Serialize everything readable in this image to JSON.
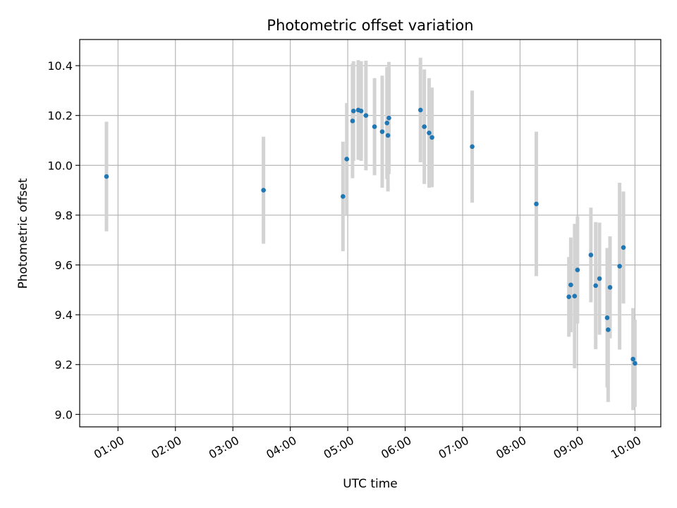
{
  "chart_data": {
    "type": "scatter",
    "title": "Photometric offset variation",
    "xlabel": "UTC time",
    "ylabel": "Photometric offset",
    "x_ticks": [
      "01:00",
      "02:00",
      "03:00",
      "04:00",
      "05:00",
      "06:00",
      "07:00",
      "08:00",
      "09:00",
      "10:00"
    ],
    "y_ticks": [
      "9.0",
      "9.2",
      "9.4",
      "9.6",
      "9.8",
      "10.0",
      "10.2",
      "10.4"
    ],
    "xlim": [
      "00:20",
      "10:27"
    ],
    "ylim": [
      8.95,
      10.505
    ],
    "grid": true,
    "colors": {
      "point": "#1f77b4",
      "errorbar": "#d3d3d3",
      "grid": "#b0b0b0"
    },
    "series": [
      {
        "points": [
          {
            "x": "00:48",
            "y": 9.955,
            "err": 0.22
          },
          {
            "x": "03:32",
            "y": 9.9,
            "err": 0.215
          },
          {
            "x": "04:55",
            "y": 9.875,
            "err": 0.22
          },
          {
            "x": "04:59",
            "y": 10.025,
            "err": 0.225
          },
          {
            "x": "05:05",
            "y": 10.178,
            "err": 0.23
          },
          {
            "x": "05:06",
            "y": 10.218,
            "err": 0.2
          },
          {
            "x": "05:11",
            "y": 10.222,
            "err": 0.2
          },
          {
            "x": "05:14",
            "y": 10.218,
            "err": 0.2
          },
          {
            "x": "05:19",
            "y": 10.2,
            "err": 0.22
          },
          {
            "x": "05:28",
            "y": 10.155,
            "err": 0.195
          },
          {
            "x": "05:36",
            "y": 10.135,
            "err": 0.225
          },
          {
            "x": "05:41",
            "y": 10.17,
            "err": 0.225
          },
          {
            "x": "05:42",
            "y": 10.12,
            "err": 0.225
          },
          {
            "x": "05:43",
            "y": 10.19,
            "err": 0.225
          },
          {
            "x": "06:16",
            "y": 10.222,
            "err": 0.21
          },
          {
            "x": "06:20",
            "y": 10.155,
            "err": 0.23
          },
          {
            "x": "06:25",
            "y": 10.13,
            "err": 0.22
          },
          {
            "x": "06:28",
            "y": 10.112,
            "err": 0.2
          },
          {
            "x": "07:10",
            "y": 10.075,
            "err": 0.225
          },
          {
            "x": "08:17",
            "y": 9.845,
            "err": 0.29
          },
          {
            "x": "08:51",
            "y": 9.472,
            "err": 0.16
          },
          {
            "x": "08:53",
            "y": 9.52,
            "err": 0.19
          },
          {
            "x": "08:57",
            "y": 9.475,
            "err": 0.29
          },
          {
            "x": "09:00",
            "y": 9.58,
            "err": 0.215
          },
          {
            "x": "09:14",
            "y": 9.64,
            "err": 0.19
          },
          {
            "x": "09:19",
            "y": 9.517,
            "err": 0.255
          },
          {
            "x": "09:23",
            "y": 9.545,
            "err": 0.225
          },
          {
            "x": "09:31",
            "y": 9.388,
            "err": 0.28
          },
          {
            "x": "09:32",
            "y": 9.34,
            "err": 0.29
          },
          {
            "x": "09:34",
            "y": 9.51,
            "err": 0.205
          },
          {
            "x": "09:44",
            "y": 9.595,
            "err": 0.335
          },
          {
            "x": "09:48",
            "y": 9.67,
            "err": 0.225
          },
          {
            "x": "09:58",
            "y": 9.222,
            "err": 0.205
          },
          {
            "x": "10:00",
            "y": 9.205,
            "err": 0.175
          }
        ]
      }
    ]
  }
}
